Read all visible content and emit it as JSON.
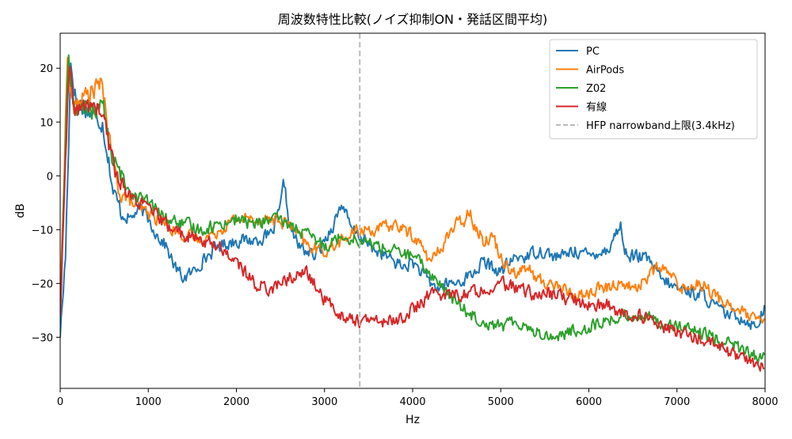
{
  "chart_data": {
    "type": "line",
    "title": "周波数特性比較(ノイズ抑制ON・発話区間平均)",
    "xlabel": "Hz",
    "ylabel": "dB",
    "xlim": [
      0,
      8000
    ],
    "ylim": [
      -39.5,
      26.5
    ],
    "xticks": [
      0,
      1000,
      2000,
      3000,
      4000,
      5000,
      6000,
      7000,
      8000
    ],
    "yticks": [
      -30,
      -20,
      -10,
      0,
      10,
      20
    ],
    "grid": false,
    "legend_position": "top-right",
    "reference_line": {
      "label": "HFP narrowband上限(3.4kHz)",
      "x": 3400,
      "color": "#bbbbbb",
      "style": "dashed"
    },
    "series": [
      {
        "name": "PC",
        "color": "#1f77b4",
        "x": [
          0,
          60,
          120,
          180,
          250,
          320,
          400,
          480,
          560,
          600,
          700,
          800,
          900,
          1000,
          1100,
          1200,
          1300,
          1400,
          1500,
          1600,
          1800,
          2000,
          2200,
          2400,
          2500,
          2540,
          2600,
          2700,
          2800,
          2900,
          3000,
          3100,
          3200,
          3300,
          3400,
          3500,
          3600,
          3700,
          3800,
          3900,
          4000,
          4100,
          4200,
          4300,
          4400,
          4500,
          4600,
          4700,
          4800,
          4900,
          5000,
          5100,
          5200,
          5300,
          5400,
          5500,
          5600,
          5700,
          5800,
          5900,
          6000,
          6100,
          6200,
          6300,
          6360,
          6400,
          6500,
          6600,
          6700,
          6800,
          6900,
          7000,
          7100,
          7200,
          7300,
          7400,
          7500,
          7600,
          7700,
          7800,
          7900,
          8000
        ],
        "y": [
          -30,
          -15,
          21,
          14,
          13,
          12,
          11,
          10,
          2,
          -3,
          -7,
          -8,
          -6,
          -8,
          -11,
          -13,
          -17,
          -19,
          -18,
          -16,
          -13,
          -12,
          -12,
          -11,
          -6,
          -1,
          -9,
          -13,
          -14,
          -15,
          -12,
          -9,
          -5,
          -10,
          -11,
          -13,
          -14,
          -15,
          -16,
          -17,
          -16,
          -18,
          -20,
          -21,
          -20,
          -20,
          -19,
          -18,
          -16,
          -17,
          -18,
          -16,
          -15,
          -15,
          -14,
          -14,
          -15,
          -15,
          -14,
          -14,
          -15,
          -14,
          -14,
          -11,
          -9,
          -14,
          -15,
          -15,
          -16,
          -19,
          -20,
          -21,
          -21,
          -22,
          -22,
          -24,
          -25,
          -26,
          -26,
          -27,
          -28,
          -24
        ]
      },
      {
        "name": "AirPods",
        "color": "#ff7f0e",
        "x": [
          0,
          80,
          150,
          220,
          300,
          380,
          450,
          500,
          560,
          650,
          800,
          1000,
          1200,
          1400,
          1600,
          1800,
          2000,
          2200,
          2400,
          2600,
          2800,
          3000,
          3200,
          3400,
          3600,
          3800,
          4000,
          4100,
          4200,
          4300,
          4400,
          4500,
          4600,
          4650,
          4700,
          4800,
          4900,
          5000,
          5100,
          5200,
          5300,
          5400,
          5500,
          5600,
          5700,
          5800,
          5900,
          6000,
          6100,
          6200,
          6300,
          6400,
          6500,
          6600,
          6700,
          6800,
          6900,
          7000,
          7100,
          7200,
          7300,
          7400,
          7500,
          7600,
          7700,
          7800,
          7900,
          8000
        ],
        "y": [
          -26,
          22,
          12,
          14,
          15,
          16,
          17,
          15,
          6,
          -2,
          -5,
          -7,
          -9,
          -11,
          -12,
          -10,
          -8,
          -8,
          -8,
          -9,
          -13,
          -14,
          -12,
          -10,
          -10,
          -9,
          -11,
          -13,
          -16,
          -14,
          -11,
          -9,
          -8,
          -6,
          -9,
          -12,
          -11,
          -15,
          -17,
          -18,
          -17,
          -19,
          -20,
          -20,
          -21,
          -22,
          -22,
          -22,
          -21,
          -21,
          -20,
          -20,
          -21,
          -20,
          -18,
          -17,
          -18,
          -20,
          -21,
          -20,
          -20,
          -22,
          -23,
          -24,
          -25,
          -26,
          -27,
          -27
        ]
      },
      {
        "name": "Z02",
        "color": "#2ca02c",
        "x": [
          0,
          90,
          150,
          220,
          300,
          380,
          450,
          500,
          560,
          650,
          800,
          1000,
          1200,
          1400,
          1600,
          1800,
          2000,
          2200,
          2400,
          2600,
          2800,
          3000,
          3200,
          3400,
          3600,
          3800,
          4000,
          4200,
          4400,
          4600,
          4800,
          5000,
          5200,
          5400,
          5600,
          5800,
          6000,
          6200,
          6400,
          6600,
          6800,
          7000,
          7200,
          7400,
          7600,
          7800,
          8000
        ],
        "y": [
          -26,
          22,
          14,
          11,
          13,
          12,
          14,
          12,
          5,
          1,
          -3,
          -5,
          -8,
          -9,
          -10,
          -9,
          -8,
          -9,
          -8,
          -9,
          -11,
          -13,
          -11,
          -12,
          -13,
          -14,
          -15,
          -18,
          -22,
          -25,
          -27,
          -28,
          -27,
          -29,
          -30,
          -29,
          -28,
          -27,
          -26,
          -26,
          -27,
          -28,
          -29,
          -30,
          -31,
          -33,
          -34
        ]
      },
      {
        "name": "有線",
        "color": "#d62728",
        "x": [
          0,
          100,
          150,
          220,
          300,
          380,
          450,
          500,
          560,
          650,
          800,
          1000,
          1200,
          1400,
          1600,
          1800,
          2000,
          2200,
          2400,
          2600,
          2800,
          3000,
          3200,
          3400,
          3600,
          3800,
          4000,
          4200,
          4400,
          4600,
          4800,
          5000,
          5200,
          5400,
          5600,
          5800,
          6000,
          6200,
          6400,
          6600,
          6800,
          7000,
          7200,
          7400,
          7600,
          7800,
          8000
        ],
        "y": [
          -26,
          20,
          13,
          12,
          13,
          13,
          12,
          10,
          5,
          0,
          -4,
          -6,
          -9,
          -11,
          -12,
          -13,
          -16,
          -20,
          -21,
          -19,
          -18,
          -23,
          -26,
          -27,
          -27,
          -27,
          -25,
          -22,
          -22,
          -22,
          -21,
          -20,
          -21,
          -22,
          -22,
          -23,
          -24,
          -24,
          -26,
          -26,
          -28,
          -29,
          -30,
          -31,
          -33,
          -34,
          -36
        ]
      }
    ]
  }
}
